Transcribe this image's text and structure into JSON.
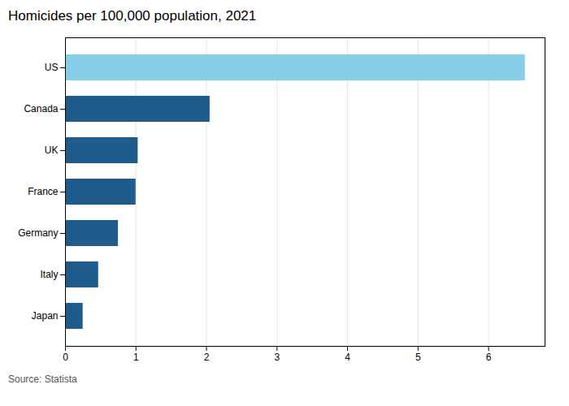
{
  "chart_data": {
    "type": "bar",
    "orientation": "horizontal",
    "title": "Homicides per 100,000 population, 2021",
    "source": "Source: Statista",
    "categories": [
      "Japan",
      "Italy",
      "Germany",
      "France",
      "UK",
      "Canada",
      "US"
    ],
    "values": [
      0.25,
      0.47,
      0.75,
      1.0,
      1.03,
      2.05,
      6.52
    ],
    "colors": [
      "#1f5c8b",
      "#1f5c8b",
      "#1f5c8b",
      "#1f5c8b",
      "#1f5c8b",
      "#1f5c8b",
      "#87ceeb"
    ],
    "xlim": [
      0,
      6.8
    ],
    "xticks": [
      0,
      1,
      2,
      3,
      4,
      5,
      6
    ],
    "grid": true
  }
}
